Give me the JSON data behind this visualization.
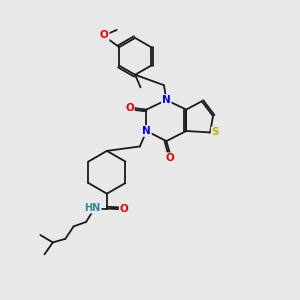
{
  "bg_color": "#e8e8e8",
  "bond_color": "#1a1a1a",
  "atom_colors": {
    "N": "#0000ee",
    "O": "#ee0000",
    "S": "#b8b800",
    "H": "#2e8b8b",
    "C": "#1a1a1a"
  },
  "font_size": 7.5,
  "line_width": 1.3
}
